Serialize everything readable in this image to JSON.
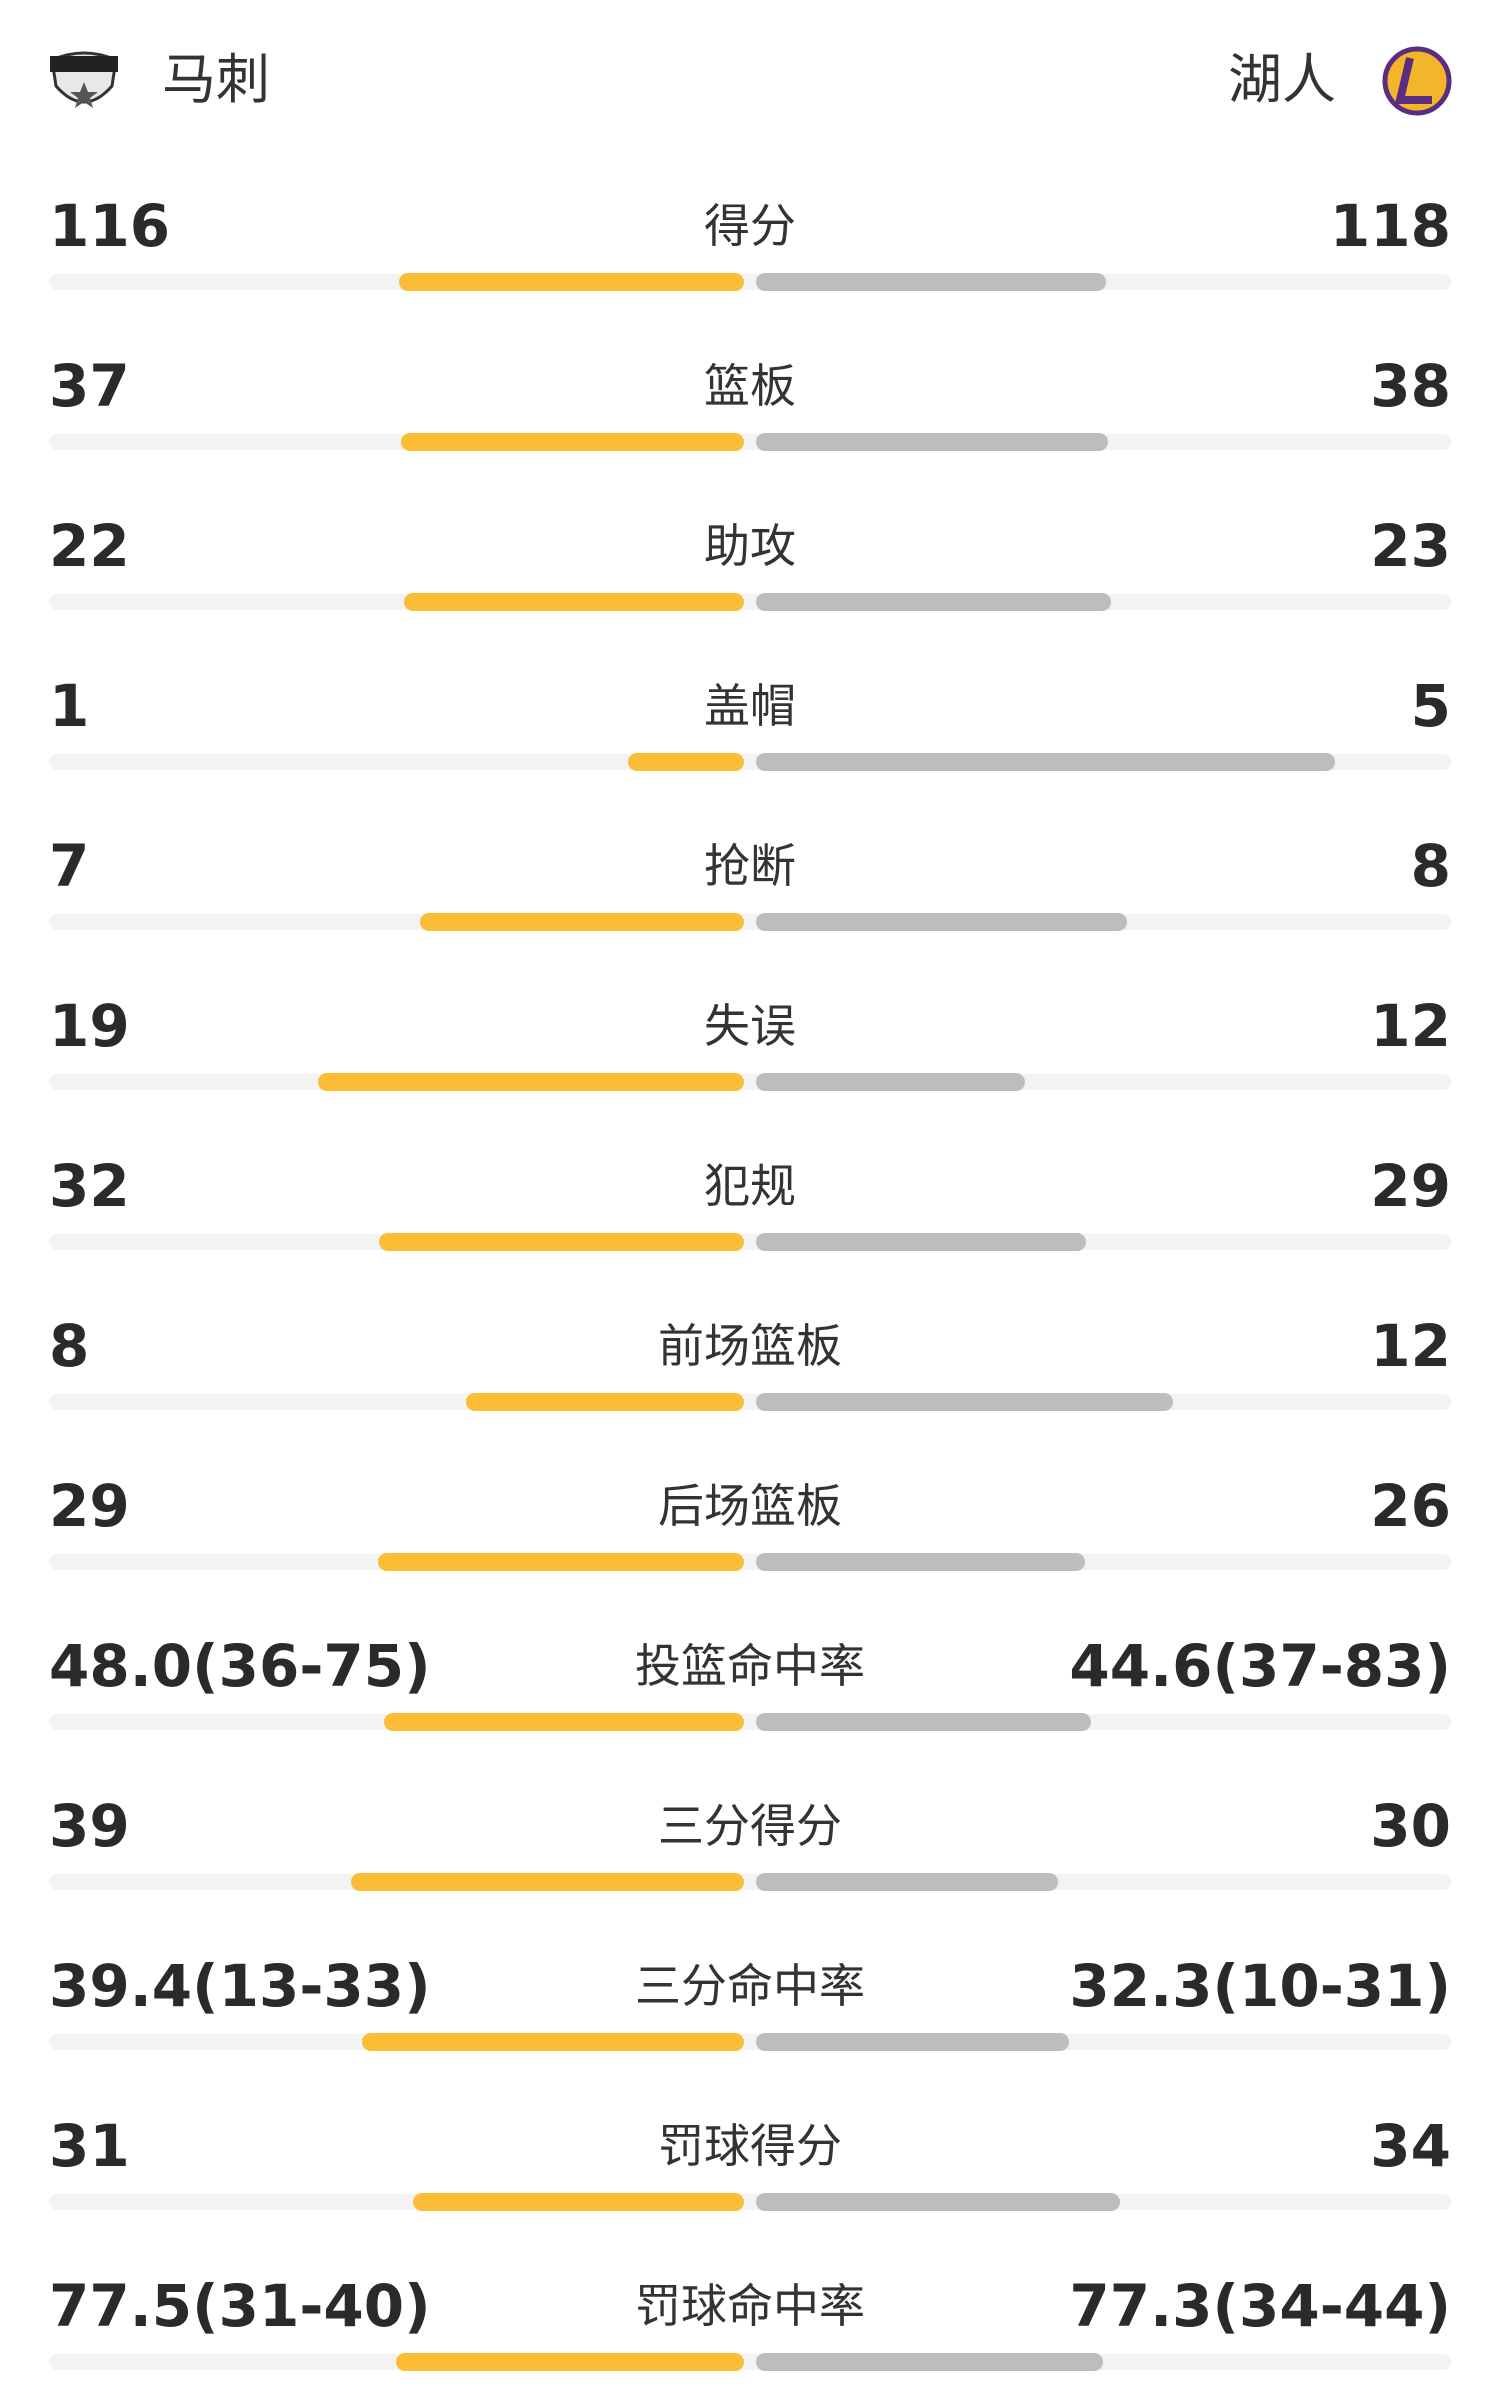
{
  "header": {
    "home_team": "马刺",
    "away_team": "湖人"
  },
  "stats": [
    {
      "label": "得分",
      "left": "116",
      "right": "118"
    },
    {
      "label": "篮板",
      "left": "37",
      "right": "38"
    },
    {
      "label": "助攻",
      "left": "22",
      "right": "23"
    },
    {
      "label": "盖帽",
      "left": "1",
      "right": "5"
    },
    {
      "label": "抢断",
      "left": "7",
      "right": "8"
    },
    {
      "label": "失误",
      "left": "19",
      "right": "12"
    },
    {
      "label": "犯规",
      "left": "32",
      "right": "29"
    },
    {
      "label": "前场篮板",
      "left": "8",
      "right": "12"
    },
    {
      "label": "后场篮板",
      "left": "29",
      "right": "26"
    },
    {
      "label": "投篮命中率",
      "left": "48.0(36-75)",
      "right": "44.6(37-83)"
    },
    {
      "label": "三分得分",
      "left": "39",
      "right": "30"
    },
    {
      "label": "三分命中率",
      "left": "39.4(13-33)",
      "right": "32.3(10-31)"
    },
    {
      "label": "罚球得分",
      "left": "31",
      "right": "34"
    },
    {
      "label": "罚球命中率",
      "left": "77.5(31-40)",
      "right": "77.3(34-44)"
    }
  ]
}
